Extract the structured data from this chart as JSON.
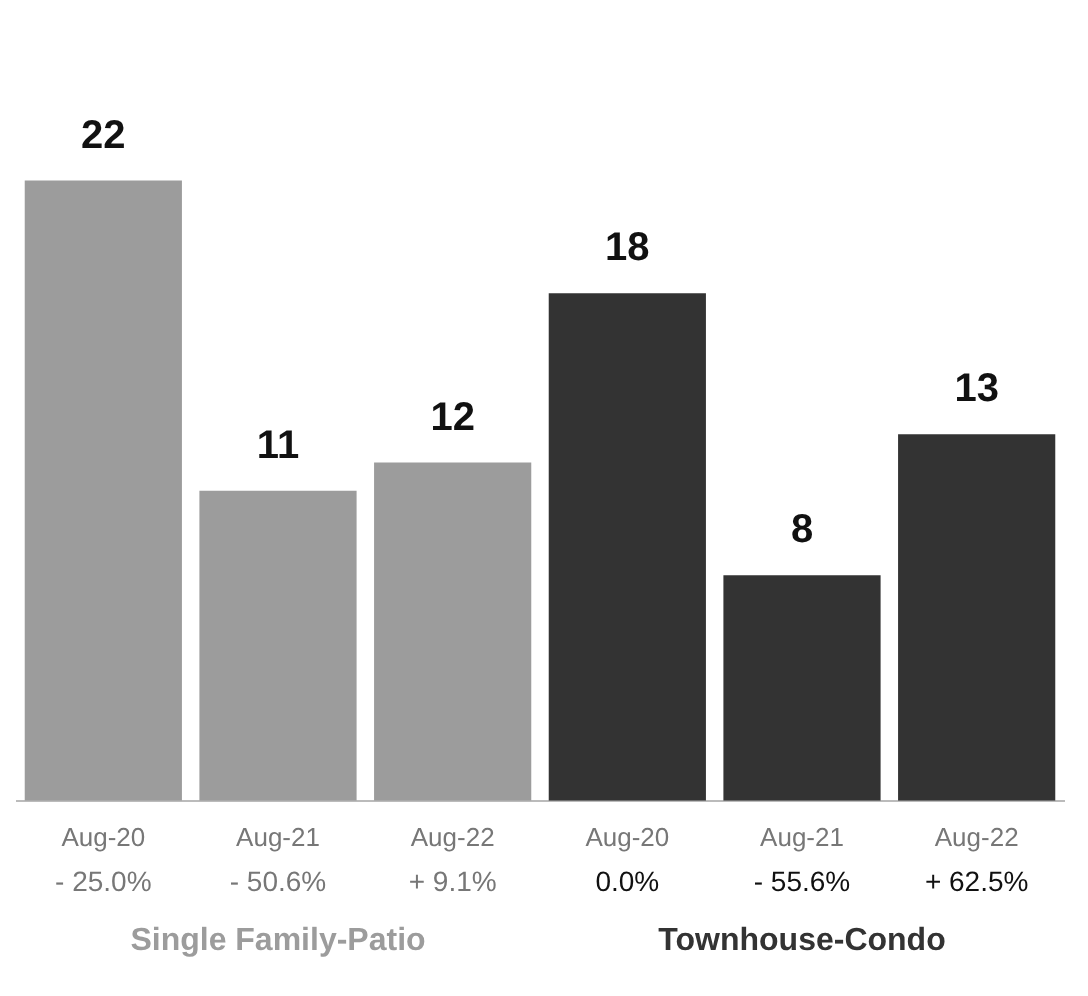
{
  "chart_data": {
    "type": "bar",
    "categories": [
      "Aug-20",
      "Aug-21",
      "Aug-22",
      "Aug-20",
      "Aug-21",
      "Aug-22"
    ],
    "series": [
      {
        "name": "Single Family-Patio",
        "color": "#9c9c9c",
        "values": [
          22,
          11,
          12,
          null,
          null,
          null
        ]
      },
      {
        "name": "Townhouse-Condo",
        "color": "#333333",
        "values": [
          null,
          null,
          null,
          18,
          8,
          13
        ]
      }
    ],
    "tick_labels": "x",
    "data_labels": true,
    "legend": false,
    "annotations": [
      "- 25.0%",
      "- 50.6%",
      "+ 9.1%",
      "0.0%",
      "- 55.6%",
      "+ 62.5%"
    ]
  }
}
